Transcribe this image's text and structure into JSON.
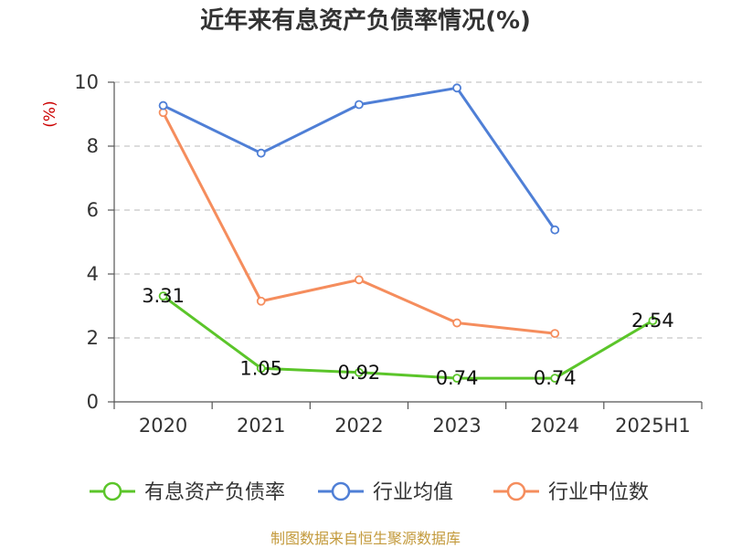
{
  "chart_data": {
    "type": "line",
    "title": "近年来有息资产负债率情况(%)",
    "ylabel": "(%)",
    "categories": [
      "2020",
      "2021",
      "2022",
      "2023",
      "2024",
      "2025H1"
    ],
    "ylim": [
      0,
      10
    ],
    "yticks": [
      0,
      2,
      4,
      6,
      8,
      10
    ],
    "grid": true,
    "legend_position": "bottom",
    "series": [
      {
        "name": "有息资产负债率",
        "color": "#5bc52a",
        "values": [
          3.31,
          1.05,
          0.92,
          0.74,
          0.74,
          2.54
        ],
        "labels": [
          "3.31",
          "1.05",
          "0.92",
          "0.74",
          "0.74",
          "2.54"
        ]
      },
      {
        "name": "行业均值",
        "color": "#4f7fd6",
        "values": [
          9.27,
          7.78,
          9.3,
          9.82,
          5.38,
          null
        ]
      },
      {
        "name": "行业中位数",
        "color": "#f58d5d",
        "values": [
          9.05,
          3.15,
          3.82,
          2.47,
          2.14,
          null
        ]
      }
    ]
  },
  "source": "制图数据来自恒生聚源数据库",
  "colors": {
    "ylabel": "#cc0000",
    "source": "#c39a3c",
    "grid": "#c8c8c8",
    "axis": "#555555"
  }
}
